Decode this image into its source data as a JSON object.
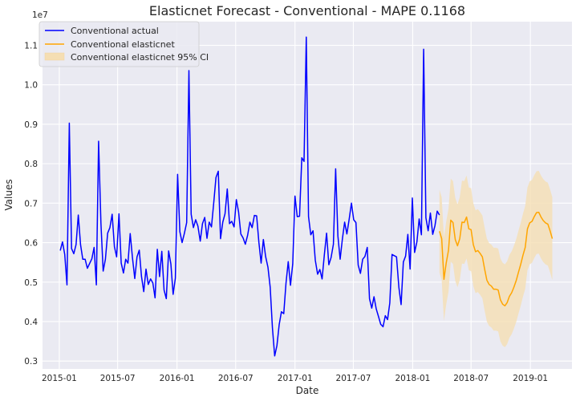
{
  "chart_data": {
    "type": "line",
    "title": "Elasticnet Forecast - Conventional - MAPE 0.1168",
    "xlabel": "Date",
    "ylabel": "Values",
    "y_scale_label": "1e7",
    "xlim": [
      "2014-11-10",
      "2019-05-10"
    ],
    "ylim": [
      2800000,
      11600000
    ],
    "x_ticks": [
      "2015-01",
      "2015-07",
      "2016-01",
      "2016-07",
      "2017-01",
      "2017-07",
      "2018-01",
      "2018-07",
      "2019-01"
    ],
    "y_ticks": [
      0.3,
      0.4,
      0.5,
      0.6,
      0.7,
      0.8,
      0.9,
      1.0,
      1.1
    ],
    "grid": true,
    "legend_position": "top-left",
    "colors": {
      "background": "#eaeaf2",
      "actual": "#0000ff",
      "forecast": "#ffa500",
      "ci": "#f5deb3"
    },
    "actual": {
      "name": "Conventional actual",
      "start": "2015-01-04",
      "interval_days": 7,
      "values": [
        5800000,
        6020000,
        5700000,
        4930000,
        9030000,
        5850000,
        5720000,
        5950000,
        6700000,
        5950000,
        5580000,
        5580000,
        5350000,
        5470000,
        5590000,
        5880000,
        4930000,
        8570000,
        6500000,
        5280000,
        5580000,
        6240000,
        6380000,
        6720000,
        5900000,
        5640000,
        6730000,
        5480000,
        5230000,
        5580000,
        5480000,
        6230000,
        5620000,
        5090000,
        5640000,
        5810000,
        5140000,
        4760000,
        5330000,
        4940000,
        5080000,
        4980000,
        4600000,
        5830000,
        5140000,
        5780000,
        4800000,
        4580000,
        5790000,
        5460000,
        4690000,
        5100000,
        7730000,
        6280000,
        6000000,
        6240000,
        6510000,
        10360000,
        6720000,
        6380000,
        6580000,
        6420000,
        6040000,
        6480000,
        6640000,
        6110000,
        6520000,
        6400000,
        7000000,
        7650000,
        7810000,
        6100000,
        6520000,
        6730000,
        7360000,
        6480000,
        6540000,
        6400000,
        7090000,
        6780000,
        6220000,
        6120000,
        5960000,
        6180000,
        6520000,
        6380000,
        6690000,
        6680000,
        6010000,
        5480000,
        6080000,
        5650000,
        5380000,
        4870000,
        3840000,
        3130000,
        3390000,
        3920000,
        4250000,
        4200000,
        4970000,
        5520000,
        4920000,
        5460000,
        7180000,
        6660000,
        6670000,
        8150000,
        8060000,
        11210000,
        6660000,
        6200000,
        6300000,
        5560000,
        5200000,
        5320000,
        5080000,
        5690000,
        6240000,
        5440000,
        5620000,
        5960000,
        7870000,
        6170000,
        5580000,
        6090000,
        6520000,
        6220000,
        6600000,
        7000000,
        6580000,
        6510000,
        5430000,
        5220000,
        5580000,
        5650000,
        5880000,
        4580000,
        4340000,
        4630000,
        4320000,
        4130000,
        3930000,
        3870000,
        4150000,
        4050000,
        4470000,
        5700000,
        5670000,
        5640000,
        4870000,
        4430000,
        5510000,
        5660000,
        6210000,
        5330000,
        7130000,
        5750000,
        6020000,
        6600000,
        6200000,
        10900000,
        6630000,
        6300000,
        6750000,
        6210000,
        6430000,
        6800000,
        6700000
      ]
    },
    "forecast": {
      "name": "Conventional elasticnet",
      "start": "2018-03-25",
      "interval_days": 7,
      "values": [
        6290000,
        6100000,
        5070000,
        5480000,
        5810000,
        6570000,
        6510000,
        6080000,
        5920000,
        6100000,
        6520000,
        6510000,
        6650000,
        6350000,
        6330000,
        5950000,
        5770000,
        5800000,
        5730000,
        5640000,
        5330000,
        5050000,
        4940000,
        4900000,
        4820000,
        4820000,
        4800000,
        4550000,
        4440000,
        4400000,
        4480000,
        4640000,
        4730000,
        4870000,
        5040000,
        5250000,
        5450000,
        5680000,
        5880000,
        6350000,
        6500000,
        6540000,
        6660000,
        6760000,
        6770000,
        6650000,
        6560000,
        6500000,
        6470000,
        6300000,
        6100000
      ]
    },
    "ci": {
      "name": "Conventional elasticnet 95% CI",
      "upper_margin": 1050000,
      "lower_margin": 1050000
    }
  }
}
